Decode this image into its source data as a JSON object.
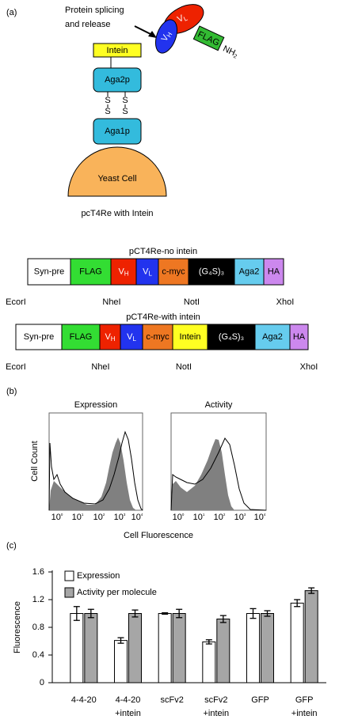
{
  "panel_a": {
    "label": "(a)",
    "release": [
      "Protein splicing",
      "and release"
    ],
    "vh": {
      "label": "V",
      "sub": "H"
    },
    "vl": {
      "label": "V",
      "sub": "L"
    },
    "flag": "FLAG",
    "nh2": {
      "label": "NH",
      "sub": "2"
    },
    "intein": "Intein",
    "aga2p": "Aga2p",
    "disulfide": [
      "S",
      "S",
      "S",
      "S"
    ],
    "aga1p": "Aga1p",
    "cell": "Yeast Cell",
    "caption": "pcT4Re with Intein",
    "constructs": [
      {
        "title": "pCT4Re-no intein",
        "segments": [
          "Syn-pre",
          "FLAG",
          {
            "label": "V",
            "sub": "H"
          },
          {
            "label": "V",
            "sub": "L"
          },
          "c-myc",
          "(G₄S)₃",
          "Aga2",
          "HA"
        ],
        "sites": [
          "EcorI",
          "NheI",
          "NotI",
          "XhoI"
        ]
      },
      {
        "title": "pCT4Re-with intein",
        "segments": [
          "Syn-pre",
          "FLAG",
          {
            "label": "V",
            "sub": "H"
          },
          {
            "label": "V",
            "sub": "L"
          },
          "c-myc",
          "Intein",
          "(G₄S)₃",
          "Aga2",
          "HA"
        ],
        "sites": [
          "EcorI",
          "NheI",
          "NotI",
          "XhoI"
        ]
      }
    ]
  },
  "panel_b": {
    "label": "(b)",
    "titles": [
      "Expression",
      "Activity"
    ],
    "y_label": "Cell Count",
    "x_label": "Cell Fluorescence",
    "tick_labels": [
      {
        "base": "10",
        "exp": "0"
      },
      {
        "base": "10",
        "exp": "1"
      },
      {
        "base": "10",
        "exp": "2"
      },
      {
        "base": "10",
        "exp": "3"
      },
      {
        "base": "10",
        "exp": "4"
      }
    ]
  },
  "chart_data": {
    "type": "bar",
    "panel_label": "(c)",
    "y_label": "Fluorescence",
    "categories": [
      "4-4-20",
      "4-4-20 +intein",
      "scFv2",
      "scFv2 +intein",
      "GFP",
      "GFP +intein"
    ],
    "series": [
      {
        "name": "Expression",
        "color": "#ffffff",
        "values": [
          1.0,
          0.61,
          1.0,
          0.59,
          1.0,
          1.15
        ],
        "errors": [
          0.1,
          0.04,
          0.01,
          0.03,
          0.07,
          0.05
        ]
      },
      {
        "name": "Activity per molecule",
        "color": "#a6a6a6",
        "values": [
          1.0,
          1.0,
          1.0,
          0.92,
          1.0,
          1.33
        ],
        "errors": [
          0.06,
          0.05,
          0.06,
          0.05,
          0.04,
          0.04
        ]
      }
    ],
    "ylim": [
      0,
      1.6
    ],
    "yticks": [
      0,
      0.4,
      0.8,
      1.2,
      1.6
    ]
  }
}
